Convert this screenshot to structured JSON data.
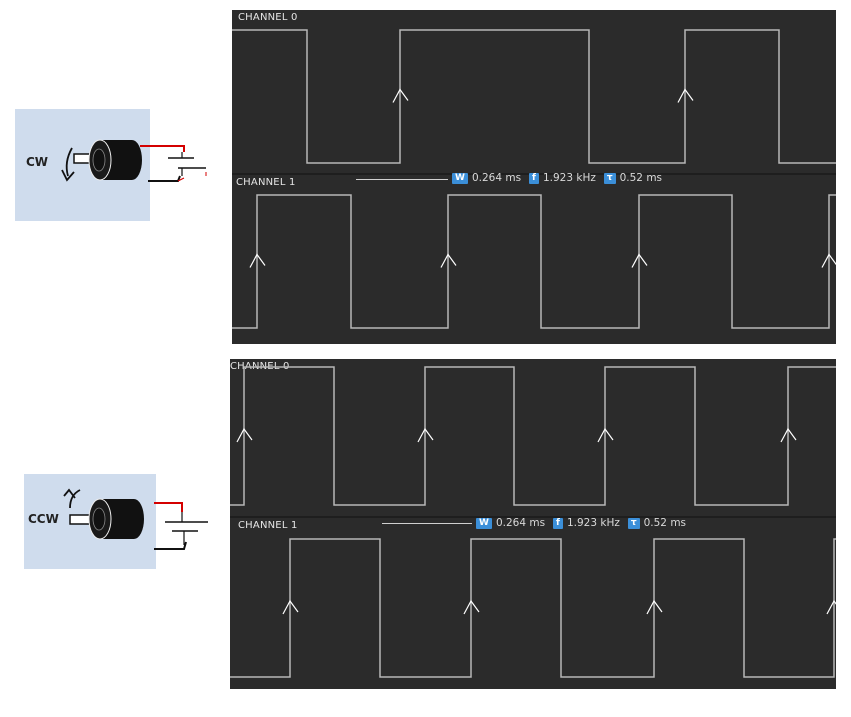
{
  "diagrams": [
    {
      "motor": {
        "direction_label": "CW",
        "rotation": "clockwise"
      },
      "channels": [
        {
          "label": "CHANNEL 0",
          "edges": [
            75,
            168,
            357,
            453,
            547
          ]
        },
        {
          "label": "CHANNEL 1",
          "edges": [
            25,
            119,
            216,
            309,
            407,
            500,
            597
          ]
        }
      ],
      "measurements": {
        "width": {
          "icon": "W",
          "value": "0.264 ms"
        },
        "frequency": {
          "icon": "f",
          "value": "1.923 kHz"
        },
        "period": {
          "icon": "τ",
          "value": "0.52 ms"
        }
      }
    },
    {
      "motor": {
        "direction_label": "CCW",
        "rotation": "counter-clockwise"
      },
      "channels": [
        {
          "label": "CHANNEL 0",
          "edges": [
            14,
            104,
            195,
            284,
            375,
            465,
            558
          ]
        },
        {
          "label": "CHANNEL 1",
          "edges": [
            60,
            150,
            241,
            331,
            424,
            514,
            604
          ]
        }
      ],
      "measurements": {
        "width": {
          "icon": "W",
          "value": "0.264 ms"
        },
        "frequency": {
          "icon": "f",
          "value": "1.923 kHz"
        },
        "period": {
          "icon": "τ",
          "value": "0.52 ms"
        }
      }
    }
  ],
  "colors": {
    "scope_bg": "#2b2b2b",
    "trace": "#b8b8b8",
    "tag": "#3b8fd9",
    "motor_bg": "#cfdced",
    "wire_red": "#d40000"
  }
}
